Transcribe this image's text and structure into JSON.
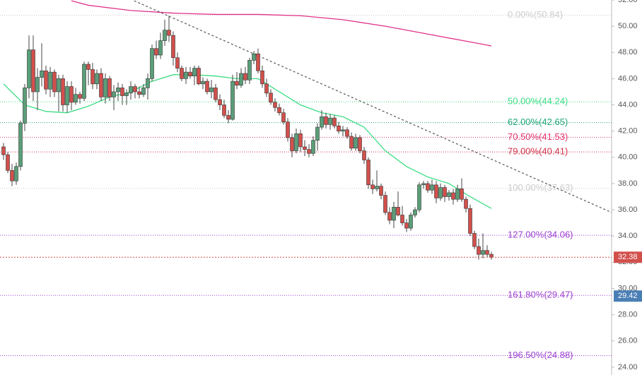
{
  "chart_data": {
    "type": "candlestick",
    "ylim": [
      23.4,
      52.0
    ],
    "yticks": [
      {
        "value": 52,
        "label": "52.00"
      },
      {
        "value": 50,
        "label": "50.00"
      },
      {
        "value": 48,
        "label": "48.00"
      },
      {
        "value": 46,
        "label": "46.00"
      },
      {
        "value": 44,
        "label": "44.00"
      },
      {
        "value": 42,
        "label": "42.00"
      },
      {
        "value": 40,
        "label": "40.00"
      },
      {
        "value": 38,
        "label": "38.00"
      },
      {
        "value": 36,
        "label": "36.00"
      },
      {
        "value": 34,
        "label": "34.00"
      },
      {
        "value": 32,
        "label": "32.00"
      },
      {
        "value": 30,
        "label": "30.00"
      },
      {
        "value": 28,
        "label": "28.00"
      },
      {
        "value": 26,
        "label": "26.00"
      },
      {
        "value": 24,
        "label": "24.00"
      }
    ],
    "up_color": "#5a9e78",
    "down_color": "#d2504c",
    "candles": [
      [
        40.8,
        41.1,
        39.8,
        40.2
      ],
      [
        40.2,
        40.4,
        38.8,
        39.0
      ],
      [
        39.0,
        39.5,
        37.8,
        38.2
      ],
      [
        38.2,
        39.6,
        37.9,
        39.3
      ],
      [
        39.3,
        42.8,
        39.0,
        42.6
      ],
      [
        42.6,
        45.6,
        42.0,
        45.3
      ],
      [
        45.3,
        49.3,
        44.5,
        48.2
      ],
      [
        48.2,
        49.3,
        44.3,
        45.0
      ],
      [
        45.0,
        46.8,
        43.6,
        46.1
      ],
      [
        46.1,
        48.7,
        45.4,
        46.6
      ],
      [
        46.6,
        47.0,
        44.8,
        45.2
      ],
      [
        45.2,
        46.9,
        44.6,
        46.5
      ],
      [
        46.5,
        46.7,
        44.6,
        45.0
      ],
      [
        45.0,
        46.3,
        43.5,
        46.0
      ],
      [
        46.0,
        46.3,
        43.5,
        44.0
      ],
      [
        44.0,
        45.8,
        43.4,
        45.4
      ],
      [
        45.4,
        45.8,
        43.6,
        44.2
      ],
      [
        44.2,
        45.3,
        44.0,
        44.8
      ],
      [
        44.8,
        45.0,
        44.1,
        44.5
      ],
      [
        44.5,
        47.3,
        44.3,
        47.1
      ],
      [
        47.1,
        47.3,
        45.5,
        46.7
      ],
      [
        46.7,
        47.2,
        45.2,
        45.6
      ],
      [
        45.6,
        46.7,
        45.2,
        46.4
      ],
      [
        46.4,
        46.8,
        44.3,
        44.6
      ],
      [
        44.6,
        46.4,
        44.1,
        46.0
      ],
      [
        46.0,
        46.2,
        44.3,
        44.6
      ],
      [
        44.6,
        45.5,
        43.6,
        45.0
      ],
      [
        45.0,
        45.7,
        44.3,
        45.3
      ],
      [
        45.3,
        45.6,
        44.0,
        44.7
      ],
      [
        44.7,
        45.2,
        44.0,
        44.9
      ],
      [
        44.9,
        45.8,
        44.4,
        45.4
      ],
      [
        45.4,
        45.6,
        44.5,
        45.0
      ],
      [
        45.0,
        45.4,
        44.5,
        44.8
      ],
      [
        44.8,
        45.6,
        44.6,
        45.3
      ],
      [
        45.3,
        46.4,
        44.4,
        46.0
      ],
      [
        46.0,
        48.6,
        45.8,
        48.3
      ],
      [
        48.3,
        48.9,
        47.5,
        47.8
      ],
      [
        47.8,
        49.5,
        47.5,
        48.9
      ],
      [
        48.9,
        50.5,
        48.5,
        49.7
      ],
      [
        49.7,
        50.8,
        48.8,
        49.3
      ],
      [
        49.3,
        49.6,
        47.0,
        47.6
      ],
      [
        47.6,
        48.0,
        46.5,
        46.8
      ],
      [
        46.8,
        47.0,
        45.8,
        46.0
      ],
      [
        46.0,
        46.9,
        45.6,
        46.5
      ],
      [
        46.5,
        46.9,
        46.0,
        46.2
      ],
      [
        46.2,
        47.0,
        45.5,
        46.8
      ],
      [
        46.8,
        47.0,
        45.5,
        45.6
      ],
      [
        45.6,
        46.1,
        45.2,
        45.8
      ],
      [
        45.8,
        46.0,
        44.8,
        45.0
      ],
      [
        45.0,
        45.9,
        44.5,
        45.3
      ],
      [
        45.3,
        45.6,
        44.2,
        44.4
      ],
      [
        44.4,
        44.8,
        43.6,
        44.0
      ],
      [
        44.0,
        44.4,
        43.0,
        43.2
      ],
      [
        43.2,
        43.6,
        42.6,
        42.9
      ],
      [
        42.9,
        46.3,
        42.8,
        45.8
      ],
      [
        45.8,
        46.5,
        45.2,
        45.5
      ],
      [
        45.5,
        46.8,
        45.3,
        46.4
      ],
      [
        46.4,
        46.9,
        45.6,
        45.9
      ],
      [
        45.9,
        47.6,
        45.6,
        47.4
      ],
      [
        47.4,
        48.1,
        47.1,
        47.9
      ],
      [
        47.9,
        48.3,
        46.4,
        46.6
      ],
      [
        46.6,
        47.0,
        45.3,
        45.6
      ],
      [
        45.6,
        46.0,
        44.6,
        44.9
      ],
      [
        44.9,
        45.2,
        44.0,
        44.2
      ],
      [
        44.2,
        44.5,
        43.5,
        43.8
      ],
      [
        43.8,
        44.1,
        43.2,
        43.4
      ],
      [
        43.4,
        43.7,
        42.5,
        42.7
      ],
      [
        42.7,
        43.0,
        41.2,
        41.5
      ],
      [
        41.5,
        41.8,
        40.0,
        40.5
      ],
      [
        40.5,
        42.2,
        40.3,
        41.8
      ],
      [
        41.8,
        42.1,
        40.4,
        40.8
      ],
      [
        40.8,
        41.3,
        40.1,
        40.6
      ],
      [
        40.6,
        41.0,
        40.0,
        40.3
      ],
      [
        40.3,
        41.6,
        40.1,
        41.3
      ],
      [
        41.3,
        42.6,
        40.5,
        42.3
      ],
      [
        42.3,
        43.6,
        42.1,
        43.1
      ],
      [
        43.1,
        43.4,
        42.2,
        42.5
      ],
      [
        42.5,
        43.3,
        42.1,
        43.0
      ],
      [
        43.0,
        43.2,
        42.2,
        42.4
      ],
      [
        42.4,
        42.7,
        41.8,
        42.0
      ],
      [
        42.0,
        42.4,
        41.6,
        42.1
      ],
      [
        42.1,
        42.3,
        41.4,
        41.6
      ],
      [
        41.6,
        41.9,
        40.5,
        40.7
      ],
      [
        40.7,
        41.8,
        40.5,
        41.5
      ],
      [
        41.5,
        41.7,
        40.3,
        40.5
      ],
      [
        40.5,
        40.8,
        39.5,
        39.8
      ],
      [
        39.8,
        40.0,
        37.6,
        37.9
      ],
      [
        37.9,
        38.3,
        37.2,
        37.6
      ],
      [
        37.6,
        39.0,
        37.4,
        37.8
      ],
      [
        37.8,
        38.0,
        36.8,
        37.1
      ],
      [
        37.1,
        37.4,
        35.6,
        35.8
      ],
      [
        35.8,
        36.2,
        34.9,
        35.2
      ],
      [
        35.2,
        36.6,
        34.6,
        36.2
      ],
      [
        36.2,
        37.4,
        35.5,
        35.6
      ],
      [
        35.6,
        36.3,
        34.8,
        35.0
      ],
      [
        35.0,
        35.3,
        34.3,
        34.6
      ],
      [
        34.6,
        35.8,
        34.4,
        35.6
      ],
      [
        35.6,
        36.2,
        35.4,
        36.0
      ],
      [
        36.0,
        38.1,
        35.8,
        37.9
      ],
      [
        37.9,
        38.2,
        37.6,
        38.0
      ],
      [
        38.0,
        38.2,
        37.3,
        37.5
      ],
      [
        37.5,
        38.3,
        37.2,
        37.9
      ],
      [
        37.9,
        38.2,
        36.5,
        36.9
      ],
      [
        36.9,
        38.0,
        36.7,
        37.7
      ],
      [
        37.7,
        37.9,
        36.6,
        37.0
      ],
      [
        37.0,
        37.5,
        36.7,
        37.3
      ],
      [
        37.3,
        37.6,
        36.4,
        36.8
      ],
      [
        36.8,
        37.9,
        36.6,
        37.6
      ],
      [
        37.6,
        38.4,
        36.6,
        36.8
      ],
      [
        36.8,
        37.0,
        35.8,
        36.1
      ],
      [
        36.1,
        36.4,
        34.0,
        34.2
      ],
      [
        34.2,
        34.4,
        33.0,
        33.2
      ],
      [
        33.2,
        33.8,
        32.2,
        32.6
      ],
      [
        32.6,
        34.2,
        32.3,
        32.9
      ],
      [
        32.9,
        33.3,
        32.4,
        32.6
      ],
      [
        32.6,
        32.8,
        32.2,
        32.38
      ]
    ],
    "moving_averages": [
      {
        "color": "#3ddc84",
        "x": [
          0,
          5,
          10,
          15,
          20,
          25,
          30,
          35,
          40,
          45,
          50,
          55,
          60,
          65,
          70,
          75,
          80,
          85,
          90,
          95,
          100,
          105,
          110,
          115
        ],
        "values": [
          45.6,
          44.0,
          43.5,
          43.4,
          43.9,
          44.6,
          45.0,
          45.8,
          46.3,
          46.3,
          46.2,
          46.0,
          46.0,
          45.0,
          44.0,
          43.4,
          43.1,
          42.3,
          40.5,
          39.3,
          38.5,
          38.0,
          37.0,
          36.1
        ]
      },
      {
        "color": "#e0338a",
        "x": [
          16,
          20,
          30,
          40,
          50,
          60,
          70,
          80,
          90,
          100,
          110,
          115
        ],
        "values": [
          51.94,
          51.6,
          51.2,
          51.0,
          50.9,
          50.9,
          50.8,
          50.5,
          50.0,
          49.4,
          48.8,
          48.5
        ]
      }
    ],
    "trendline": {
      "color": "#555555",
      "x": [
        30.8,
        143.3
      ],
      "values": [
        51.94,
        35.8
      ]
    },
    "levels": [
      {
        "label": "0.00%(50.84)",
        "value": 50.84,
        "color": "#cccccc"
      },
      {
        "label": "50.00%(44.24)",
        "value": 44.24,
        "color": "#3ddc84"
      },
      {
        "label": "62.00%(42.65)",
        "value": 42.65,
        "color": "#1fa67a"
      },
      {
        "label": "70.50%(41.53)",
        "value": 41.53,
        "color": "#e0336a"
      },
      {
        "label": "79.00%(40.41)",
        "value": 40.41,
        "color": "#d0304a"
      },
      {
        "label": "100.00%(37.63)",
        "value": 37.63,
        "color": "#cccccc"
      },
      {
        "label": "127.00%(34.06)",
        "value": 34.06,
        "color": "#9b3fd0"
      },
      {
        "label": "161.80%(29.47)",
        "value": 29.47,
        "color": "#9b3fd0"
      },
      {
        "label": "196.50%(24.88)",
        "value": 24.88,
        "color": "#9b3fd0"
      }
    ],
    "price_tags": [
      {
        "value": 32.38,
        "color": "#d2504c"
      },
      {
        "value": 29.42,
        "color": "#4a7fb5"
      }
    ]
  }
}
